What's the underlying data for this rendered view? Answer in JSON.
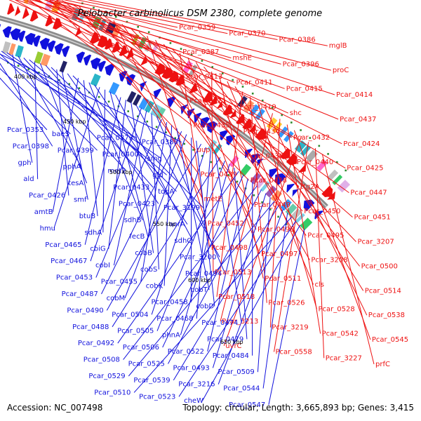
{
  "title": "Pelobacter carbinolicus DSM 2380, complete genome",
  "accession": "Accession: NC_007498",
  "topology": "Topology: circular; Length: 3,665,893 bp; Genes: 3,415",
  "colors": {
    "forward_strand": "#ee1111",
    "reverse_strand": "#1111dd",
    "backbone": "#8c8c8c",
    "marker": "#2e8b2e"
  },
  "kbp_labels": [
    "400 kbp",
    "450 kbp",
    "500 kbp",
    "550 kbp",
    "600 kbp",
    "650 kbp"
  ],
  "forward_labels": [
    "Pcar_0359",
    "Pcar_0370",
    "Pcar_0386",
    "mglB",
    "Pcar_0387",
    "mshE",
    "Pcar_0396",
    "proC",
    "Pcar_0413",
    "Pcar_0411",
    "Pcar_0415",
    "Pcar_0414",
    "Pcar_0421",
    "Pcar_0419",
    "shc",
    "Pcar_0437",
    "Pcar_0435",
    "Pcar_0434",
    "Pcar_0432",
    "Pcar_0424",
    "uup",
    "Pcar_0436",
    "Pcar_0440",
    "Pcar_0425",
    "Pcar_0439",
    "Pcar_0438",
    "ttg2A",
    "Pcar_0447",
    "metE",
    "Pcar_0449",
    "Pcar_0450",
    "Pcar_0451",
    "Pcar_0452",
    "Pcar_0496",
    "Pcar_0495",
    "Pcar_3207",
    "Pcar_0498",
    "Pcar_0497",
    "Pcar_3208",
    "Pcar_0500",
    "Pcar_0513",
    "Pcar_0511",
    "cls",
    "Pcar_0514",
    "Pcar_0518",
    "Pcar_0526",
    "Pcar_0528",
    "Pcar_0538",
    "Pcar_3213",
    "Pcar_3219",
    "Pcar_0542",
    "Pcar_0545",
    "uvrC",
    "Pcar_0558",
    "Pcar_3227",
    "prfC"
  ],
  "reverse_labels": [
    "Pcar_0353",
    "baeS",
    "Pcar_0373",
    "Pcar_0380",
    "Pcar_0398",
    "Pcar_0399",
    "Pcar_0400",
    "smg",
    "gph",
    "pphA",
    "met2",
    "gid",
    "ald",
    "tesA",
    "Pcar_0433",
    "topA",
    "Pcar_0426",
    "smf",
    "Pcar_0423",
    "Pcar_3199",
    "amtB",
    "btuB",
    "sdhB",
    "aorA",
    "hmu",
    "sdhA",
    "fecB",
    "sdhC",
    "Pcar_0465",
    "cbiG",
    "cobB",
    "Pcar_3200",
    "Pcar_0467",
    "cobI",
    "cobS",
    "Pcar_0494",
    "Pcar_0453",
    "Pcar_0455",
    "cobK",
    "cobT",
    "Pcar_0487",
    "cobM",
    "Pcar_0458",
    "cobD",
    "Pcar_0490",
    "Pcar_0504",
    "Pcar_0468",
    "Pcar_0474",
    "Pcar_0488",
    "Pcar_0505",
    "phnA",
    "Pcar_0479",
    "Pcar_0492",
    "Pcar_0506",
    "Pcar_0522",
    "Pcar_0484",
    "Pcar_0508",
    "Pcar_0525",
    "Pcar_0493",
    "Pcar_0509",
    "Pcar_0529",
    "Pcar_0539",
    "Pcar_3216",
    "Pcar_0544",
    "Pcar_0510",
    "Pcar_0523",
    "cheW",
    "Pcar_0547"
  ]
}
